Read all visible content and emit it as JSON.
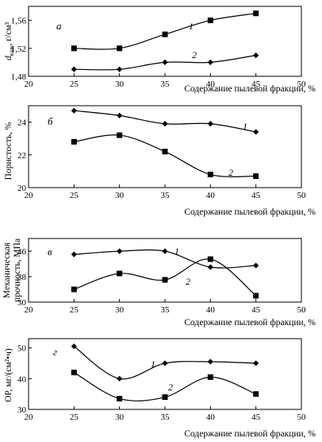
{
  "chart_data": [
    {
      "type": "line",
      "panel_letter": "а",
      "ylabel": "d_каж, г/см³",
      "ylabel_main": "d",
      "ylabel_sub": "каж",
      "ylabel_rest": ", г/см³",
      "xlabel": "Содержание пылевой фракции, %",
      "x_ticks": [
        20,
        25,
        30,
        35,
        40,
        45,
        50
      ],
      "y_ticks": [
        "1,48",
        "1,52",
        "1,56"
      ],
      "y_tick_values": [
        1.48,
        1.52,
        1.56
      ],
      "xlim": [
        20,
        50
      ],
      "ylim": [
        1.48,
        1.58
      ],
      "x": [
        25,
        30,
        35,
        40,
        45
      ],
      "series": [
        {
          "name": "1",
          "marker": "diamond",
          "values": [
            1.49,
            1.49,
            1.5,
            1.5,
            1.51
          ]
        },
        {
          "name": "2",
          "marker": "square",
          "values": [
            1.52,
            1.52,
            1.54,
            1.56,
            1.57
          ]
        }
      ]
    },
    {
      "type": "line",
      "panel_letter": "б",
      "ylabel": "Пористость, %",
      "xlabel": "Содержание пылевой фракции, %",
      "x_ticks": [
        20,
        25,
        30,
        35,
        40,
        45,
        50
      ],
      "y_ticks": [
        "20",
        "22",
        "24"
      ],
      "y_tick_values": [
        20,
        22,
        24
      ],
      "xlim": [
        20,
        50
      ],
      "ylim": [
        20,
        25
      ],
      "x": [
        25,
        30,
        35,
        40,
        45
      ],
      "series": [
        {
          "name": "1",
          "marker": "diamond",
          "values": [
            24.7,
            24.4,
            23.9,
            23.9,
            23.4
          ]
        },
        {
          "name": "2",
          "marker": "square",
          "values": [
            22.8,
            23.2,
            22.2,
            20.8,
            20.7
          ]
        }
      ]
    },
    {
      "type": "line",
      "panel_letter": "в",
      "ylabel": "Механическая прочность, МПа",
      "ylabel_line1": "Механическая",
      "ylabel_line2": "прочность, МПа",
      "xlabel": "Содержание пылевой фракции, %",
      "x_ticks": [
        20,
        25,
        30,
        35,
        40,
        45,
        50
      ],
      "y_ticks": [
        "30",
        "38",
        "46"
      ],
      "y_tick_values": [
        30,
        38,
        46
      ],
      "xlim": [
        20,
        50
      ],
      "ylim": [
        30,
        50
      ],
      "x": [
        25,
        30,
        35,
        40,
        45
      ],
      "series": [
        {
          "name": "1",
          "marker": "diamond",
          "values": [
            45,
            46,
            46,
            41,
            41.5
          ]
        },
        {
          "name": "2",
          "marker": "square",
          "values": [
            34,
            39,
            37,
            43.5,
            32
          ]
        }
      ]
    },
    {
      "type": "line",
      "panel_letter": "г",
      "ylabel": "ОР, мг/(см²•ч)",
      "xlabel": "Содержание пылевой фракции, %",
      "x_ticks": [
        20,
        25,
        30,
        35,
        40,
        45,
        50
      ],
      "y_ticks": [
        "30",
        "40",
        "50"
      ],
      "y_tick_values": [
        30,
        40,
        50
      ],
      "xlim": [
        20,
        50
      ],
      "ylim": [
        30,
        53
      ],
      "x": [
        25,
        30,
        35,
        40,
        45
      ],
      "series": [
        {
          "name": "1",
          "marker": "diamond",
          "values": [
            50.5,
            40,
            45,
            45.5,
            45
          ]
        },
        {
          "name": "2",
          "marker": "square",
          "values": [
            42,
            33.5,
            34,
            40.5,
            35
          ]
        }
      ]
    }
  ]
}
